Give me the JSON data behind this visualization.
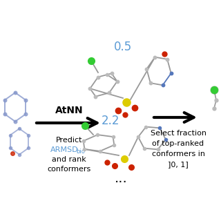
{
  "bg_color": "#ffffff",
  "atnn_label": "AtNN",
  "score1": "0.5",
  "score2": "2.2",
  "dots": "...",
  "select_text_lines": [
    "Select fraction",
    "of top-ranked",
    "conformers in",
    "]0, 1]"
  ],
  "score_color": "#5b9bd5",
  "armsd_color": "#5b9bd5",
  "text_color": "#000000",
  "figsize": [
    3.2,
    3.2
  ],
  "dpi": 100,
  "left_mol_color": "#8899cc",
  "gray_bond": "#999999",
  "gray_atom": "#bbbbbb",
  "green_cl": "#33cc33",
  "yellow_s": "#ddcc00",
  "red_o": "#cc2200",
  "blue_n": "#5577bb"
}
